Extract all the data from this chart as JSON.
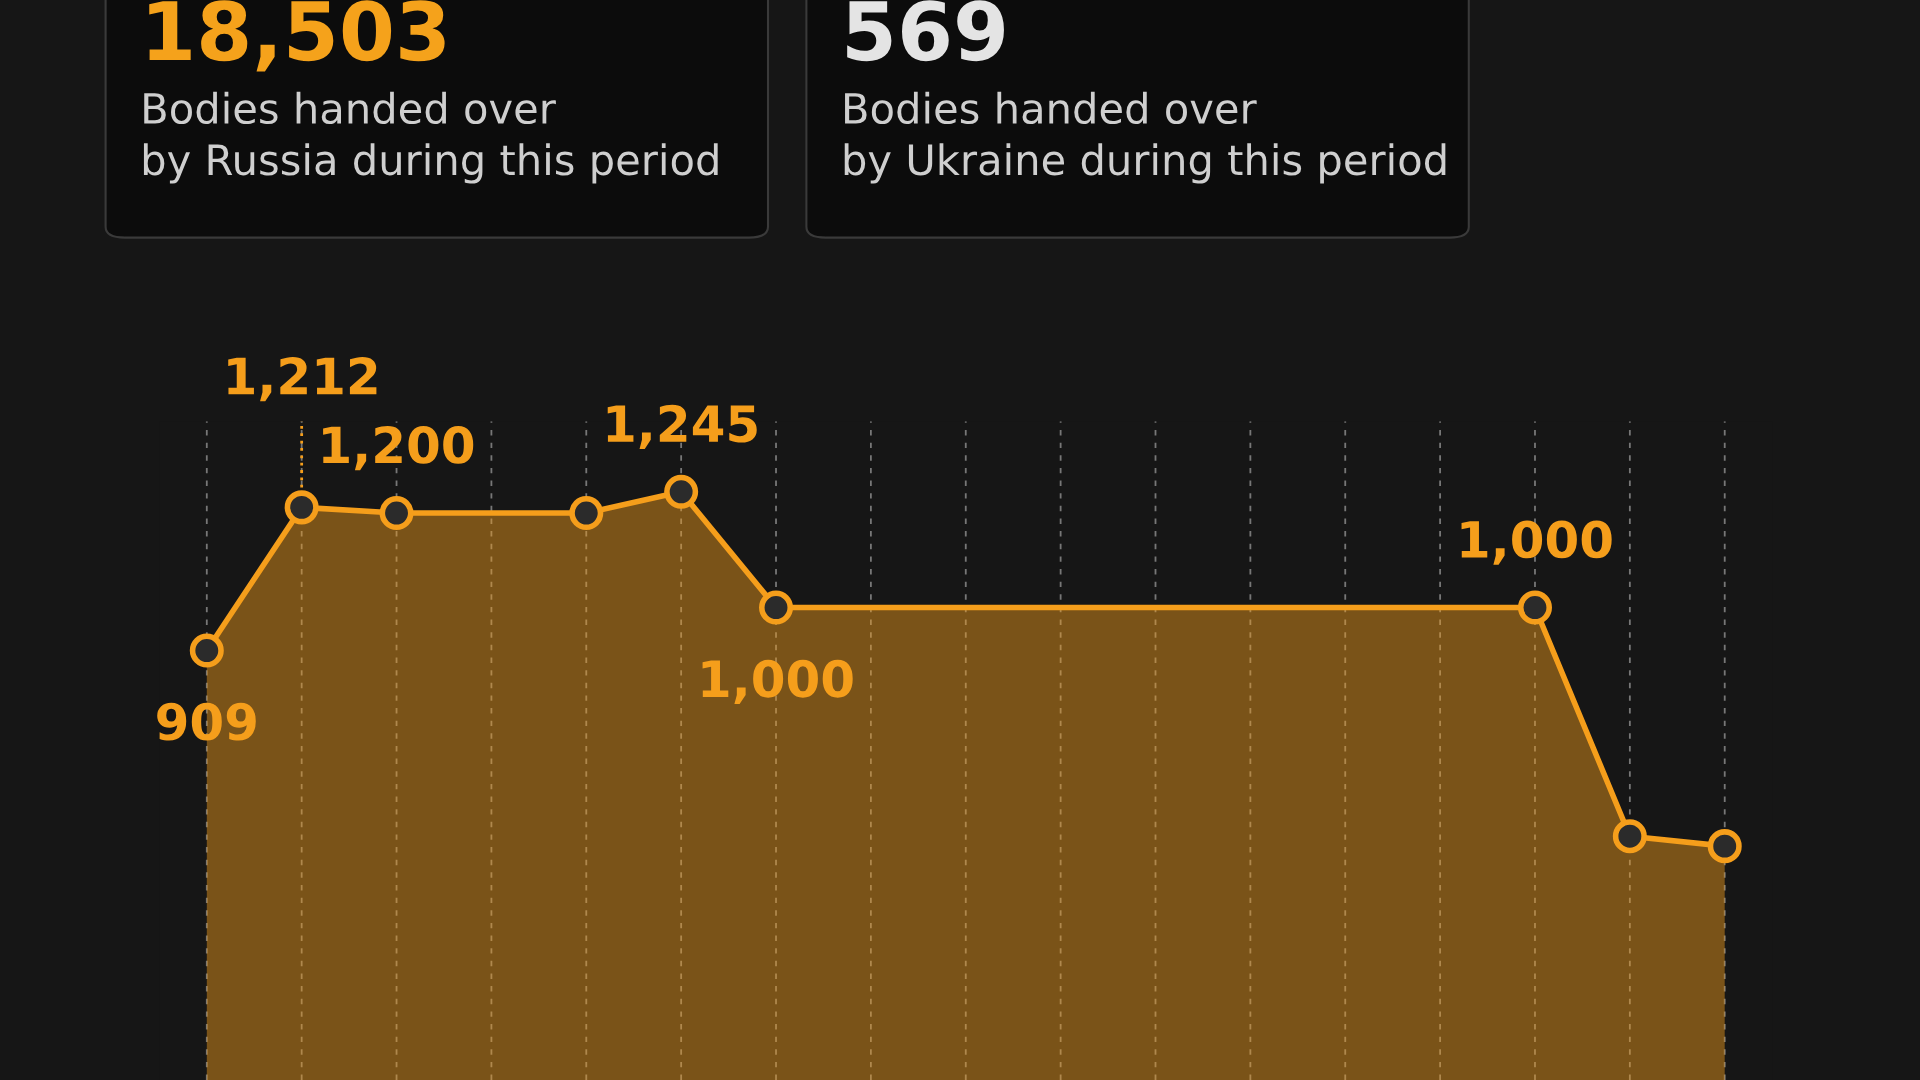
{
  "chart_data": {
    "type": "area",
    "annotations": [
      "18,503",
      "Bodies handed over\nby Russia during this period",
      "569",
      "Bodies handed over\nby Ukraine during this period"
    ],
    "categories": [
      null,
      null,
      null,
      null,
      null,
      null,
      null,
      null,
      null,
      null,
      null,
      null,
      null,
      null,
      null,
      null,
      null
    ],
    "series": [
      {
        "color": "#f59e1b",
        "values": [
          909,
          1212,
          1200,
          1200,
          1200,
          1245,
          1000,
          1000,
          1000,
          1000,
          1000,
          1000,
          1000,
          1000,
          1000,
          516,
          495
        ],
        "value_labels": [
          "909",
          "1,212",
          "1,200",
          null,
          null,
          "1,245",
          "1,000",
          null,
          null,
          null,
          null,
          null,
          null,
          null,
          "1,000",
          null,
          null
        ]
      }
    ],
    "marker": "circle",
    "grid": "x",
    "legend": false
  }
}
